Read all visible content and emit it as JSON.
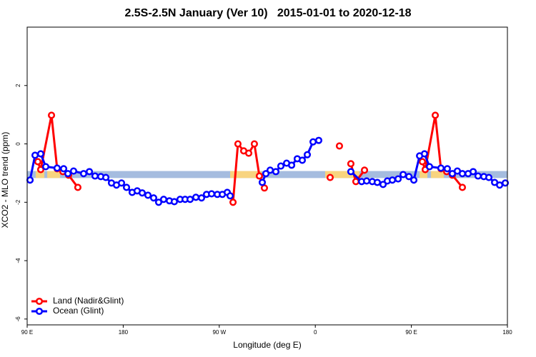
{
  "chart_data": {
    "type": "line",
    "title": "2.5S-2.5N January (Ver 10)   2015-01-01 to 2020-12-18",
    "x_label": "Longitude (deg E)",
    "y_label": "XCO2 - MLO trend (ppm)",
    "xlim": [
      90,
      540
    ],
    "ylim": [
      -6.2,
      4
    ],
    "xticks": [
      {
        "value": 90,
        "label": "90 E"
      },
      {
        "value": 180,
        "label": "180"
      },
      {
        "value": 270,
        "label": "90 W"
      },
      {
        "value": 360,
        "label": "0"
      },
      {
        "value": 450,
        "label": "90 E"
      },
      {
        "value": 540,
        "label": "180"
      }
    ],
    "yticks": [
      -6,
      -4,
      -2,
      0,
      2
    ],
    "legend": "bottom-left",
    "band": {
      "range": [
        -1.17,
        -0.93
      ],
      "color": "#a5bcdf",
      "land_color": "#f8d47f",
      "land_segments": [
        [
          98,
          106.1
        ],
        [
          108.8,
          120.8
        ],
        [
          280.2,
          309.6
        ],
        [
          369.2,
          401.4
        ],
        [
          457.7,
          465
        ],
        [
          468.4,
          480.4
        ]
      ]
    },
    "series": [
      {
        "name": "Land (Nadir&Glint)",
        "color": "#ff0000",
        "x": [
          100,
          102.7,
          112.8,
          118.1,
          123.5,
          128.8,
          137.5,
          null,
          282.9,
          287.5,
          292.9,
          297.6,
          302.9,
          307.6,
          312.3,
          null,
          373.9,
          null,
          382.6,
          null,
          393.3,
          398,
          406.1,
          null,
          460.3,
          463,
          472.4,
          477.7,
          483.1,
          488.4,
          497.8
        ],
        "values": [
          -0.61,
          -0.88,
          0.98,
          -0.85,
          -0.95,
          -1.07,
          -1.49,
          null,
          -2.0,
          0.0,
          -0.24,
          -0.32,
          0.0,
          -1.1,
          -1.51,
          null,
          -1.15,
          null,
          -0.07,
          null,
          -0.68,
          -1.29,
          -0.9,
          null,
          -0.61,
          -0.88,
          0.98,
          -0.85,
          -0.95,
          -1.07,
          -1.49
        ]
      },
      {
        "name": "Ocean (Glint)",
        "color": "#0000ff",
        "x": [
          92.7,
          97.4,
          102.7,
          107.4,
          118.1,
          124.2,
          128.2,
          133.5,
          142.9,
          148.3,
          153.6,
          159,
          163.7,
          169,
          173.7,
          178.4,
          183.1,
          188.4,
          193.1,
          197.8,
          203.2,
          208.5,
          213.2,
          217.9,
          223.3,
          227.9,
          233.3,
          238,
          242.7,
          248.1,
          253.4,
          258.1,
          262.8,
          268.2,
          272.9,
          277.5,
          280.2,
          null,
          310.3,
          313.7,
          317.7,
          323,
          327.7,
          333.1,
          337.8,
          343.1,
          347.8,
          352.5,
          357.9,
          363.2,
          null,
          393.3,
          403.4,
          408.1,
          413.4,
          418.1,
          423.5,
          427.5,
          432.2,
          437.6,
          442.3,
          447.7,
          452.3,
          457.7,
          462.3,
          467,
          477.7,
          483.7,
          488.4,
          493.1,
          497.8,
          503.2,
          507.9,
          512.5,
          517.9,
          522.6,
          528,
          532.7,
          538
        ],
        "values": [
          -1.24,
          -0.39,
          -0.34,
          -0.78,
          -0.83,
          -0.85,
          -1.02,
          -0.93,
          -1.02,
          -0.95,
          -1.1,
          -1.12,
          -1.15,
          -1.34,
          -1.41,
          -1.34,
          -1.49,
          -1.66,
          -1.61,
          -1.68,
          -1.76,
          -1.85,
          -2.0,
          -1.9,
          -1.95,
          -1.98,
          -1.9,
          -1.9,
          -1.9,
          -1.83,
          -1.85,
          -1.73,
          -1.71,
          -1.73,
          -1.73,
          -1.66,
          -1.78,
          null,
          -1.32,
          -1.02,
          -0.9,
          -0.95,
          -0.76,
          -0.66,
          -0.73,
          -0.51,
          -0.56,
          -0.37,
          0.07,
          0.12,
          null,
          -0.95,
          -1.29,
          -1.27,
          -1.29,
          -1.32,
          -1.39,
          -1.27,
          -1.24,
          -1.2,
          -1.05,
          -1.12,
          -1.24,
          -0.41,
          -0.34,
          -0.78,
          -0.83,
          -0.85,
          -1.02,
          -0.93,
          -1.02,
          -1.02,
          -0.95,
          -1.1,
          -1.12,
          -1.15,
          -1.32,
          -1.41,
          -1.34
        ]
      }
    ]
  }
}
